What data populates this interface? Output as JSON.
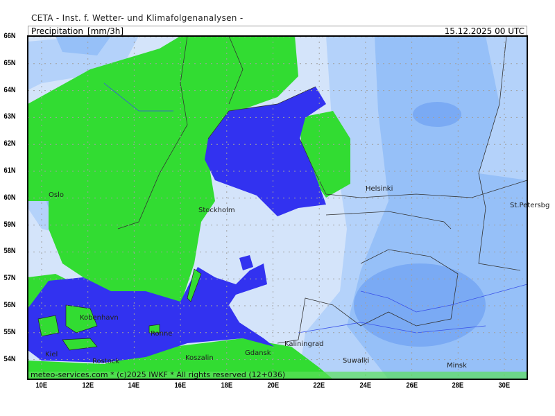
{
  "header": {
    "institute": "CETA - Inst. f. Wetter- und Klimafolgenanalysen -"
  },
  "titlebar": {
    "variable": "Precipitation_[mm/3h]",
    "valid_time": "15.12.2025 00 UTC"
  },
  "lat_ticks": [
    "66N",
    "65N",
    "64N",
    "63N",
    "62N",
    "61N",
    "60N",
    "59N",
    "58N",
    "57N",
    "56N",
    "55N",
    "54N"
  ],
  "lon_ticks": [
    "10E",
    "12E",
    "14E",
    "16E",
    "18E",
    "20E",
    "22E",
    "24E",
    "26E",
    "28E",
    "30E"
  ],
  "cities": [
    "Oslo",
    "Stockholm",
    "Helsinki",
    "St.Petersbg",
    "Kobenhavn",
    "Ronne",
    "Kiel",
    "Rostock",
    "Koszalin",
    "Gdansk",
    "Kaliningrad",
    "Suwalki",
    "Minsk"
  ],
  "footer": "meteo-services.com * (c)2025 IWKF * All rights reserved (12+036)",
  "colors": {
    "very_light_blue": "#d4e4fa",
    "light_blue": "#b4d2fa",
    "mid_blue": "#96c0f8",
    "dark_blue": "#7aaaf4",
    "green": "#32dc32",
    "deep_blue": "#3232f0"
  }
}
